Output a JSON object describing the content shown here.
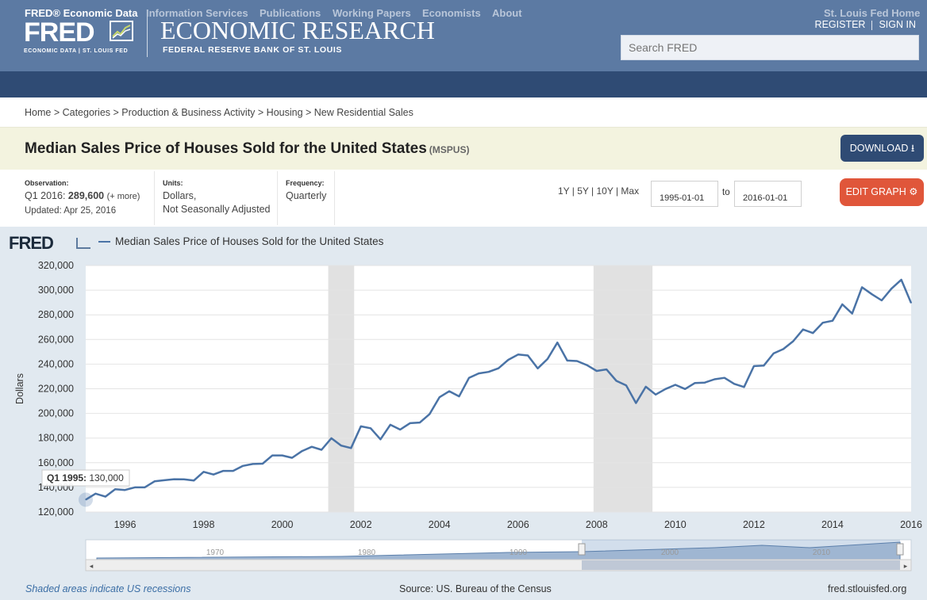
{
  "header": {
    "logo_text": "FRED",
    "logo_sub": "ECONOMIC DATA  |  ST. LOUIS FED",
    "org_title": "ECONOMIC RESEARCH",
    "org_subtitle": "FEDERAL RESERVE BANK OF ST. LOUIS",
    "register": "REGISTER",
    "sign_in": "SIGN IN",
    "search_placeholder": "Search FRED"
  },
  "nav": {
    "items": [
      "FRED® Economic Data",
      "Information Services",
      "Publications",
      "Working Papers",
      "Economists",
      "About"
    ],
    "right": "St. Louis Fed Home"
  },
  "breadcrumb": "Home > Categories > Production & Business Activity > Housing > New Residential Sales",
  "series": {
    "title": "Median Sales Price of Houses Sold for the United States",
    "id": "(MSPUS)",
    "download": "DOWNLOAD",
    "edit_graph": "EDIT GRAPH"
  },
  "meta": {
    "observation_label": "Observation:",
    "observation_period": "Q1 2016:",
    "observation_value": "289,600",
    "observation_more": "(+ more)",
    "updated": "Updated: Apr 25, 2016",
    "units_label": "Units:",
    "units_1": "Dollars,",
    "units_2": "Not Seasonally Adjusted",
    "frequency_label": "Frequency:",
    "frequency": "Quarterly"
  },
  "range": {
    "links": "1Y | 5Y | 10Y | Max",
    "start": "1995-01-01",
    "to": "to",
    "end": "2016-01-01"
  },
  "tooltip": {
    "label": "Q1 1995:",
    "value": "130,000"
  },
  "footer": {
    "note": "Shaded areas indicate US recessions",
    "source": "Source: US. Bureau of the Census",
    "url": "fred.stlouisfed.org"
  },
  "navigator": {
    "years": [
      "1970",
      "1980",
      "1990",
      "2000",
      "2010"
    ]
  },
  "chart_data": {
    "type": "line",
    "title": "",
    "legend": "Median Sales Price of Houses Sold for the United States",
    "logo": "FRED",
    "xlabel": "",
    "ylabel": "Dollars",
    "xlim": [
      1995.0,
      2016.0
    ],
    "ylim": [
      120000,
      320000
    ],
    "yticks": [
      120000,
      140000,
      160000,
      180000,
      200000,
      220000,
      240000,
      260000,
      280000,
      300000,
      320000
    ],
    "ytick_labels": [
      "120,000",
      "140,000",
      "160,000",
      "180,000",
      "200,000",
      "220,000",
      "240,000",
      "260,000",
      "280,000",
      "300,000",
      "320,000"
    ],
    "xticks": [
      "1996",
      "1998",
      "2000",
      "2002",
      "2004",
      "2006",
      "2008",
      "2010",
      "2012",
      "2014",
      "2016"
    ],
    "grid": true,
    "line_color": "#4a73a6",
    "recessions": [
      [
        2001.17,
        2001.83
      ],
      [
        2007.92,
        2009.42
      ]
    ],
    "series": [
      {
        "name": "Median Sales Price of Houses Sold for the United States",
        "x": [
          "1995-Q1",
          "1995-Q2",
          "1995-Q3",
          "1995-Q4",
          "1996-Q1",
          "1996-Q2",
          "1996-Q3",
          "1996-Q4",
          "1997-Q1",
          "1997-Q2",
          "1997-Q3",
          "1997-Q4",
          "1998-Q1",
          "1998-Q2",
          "1998-Q3",
          "1998-Q4",
          "1999-Q1",
          "1999-Q2",
          "1999-Q3",
          "1999-Q4",
          "2000-Q1",
          "2000-Q2",
          "2000-Q3",
          "2000-Q4",
          "2001-Q1",
          "2001-Q2",
          "2001-Q3",
          "2001-Q4",
          "2002-Q1",
          "2002-Q2",
          "2002-Q3",
          "2002-Q4",
          "2003-Q1",
          "2003-Q2",
          "2003-Q3",
          "2003-Q4",
          "2004-Q1",
          "2004-Q2",
          "2004-Q3",
          "2004-Q4",
          "2005-Q1",
          "2005-Q2",
          "2005-Q3",
          "2005-Q4",
          "2006-Q1",
          "2006-Q2",
          "2006-Q3",
          "2006-Q4",
          "2007-Q1",
          "2007-Q2",
          "2007-Q3",
          "2007-Q4",
          "2008-Q1",
          "2008-Q2",
          "2008-Q3",
          "2008-Q4",
          "2009-Q1",
          "2009-Q2",
          "2009-Q3",
          "2009-Q4",
          "2010-Q1",
          "2010-Q2",
          "2010-Q3",
          "2010-Q4",
          "2011-Q1",
          "2011-Q2",
          "2011-Q3",
          "2011-Q4",
          "2012-Q1",
          "2012-Q2",
          "2012-Q3",
          "2012-Q4",
          "2013-Q1",
          "2013-Q2",
          "2013-Q3",
          "2013-Q4",
          "2014-Q1",
          "2014-Q2",
          "2014-Q3",
          "2014-Q4",
          "2015-Q1",
          "2015-Q2",
          "2015-Q3",
          "2015-Q4",
          "2016-Q1"
        ],
        "values": [
          130000,
          134900,
          132500,
          138500,
          137900,
          140000,
          140000,
          144900,
          145800,
          146600,
          146500,
          145500,
          152600,
          150400,
          153400,
          153400,
          157400,
          159000,
          159200,
          165900,
          165900,
          164000,
          169400,
          172900,
          170500,
          179900,
          173900,
          171900,
          189500,
          188000,
          179000,
          190800,
          186900,
          192100,
          192600,
          199500,
          213100,
          218000,
          213800,
          228800,
          232500,
          233700,
          236600,
          243500,
          247800,
          247000,
          236500,
          244200,
          257500,
          242900,
          242500,
          239200,
          234500,
          235700,
          226400,
          222700,
          208400,
          221700,
          215300,
          219800,
          223200,
          219800,
          224700,
          225000,
          227700,
          228900,
          224000,
          221400,
          238400,
          238800,
          248700,
          252200,
          258600,
          268100,
          265200,
          273600,
          275200,
          288500,
          281000,
          302400,
          296700,
          291700,
          301200,
          308500,
          289600
        ]
      }
    ]
  }
}
